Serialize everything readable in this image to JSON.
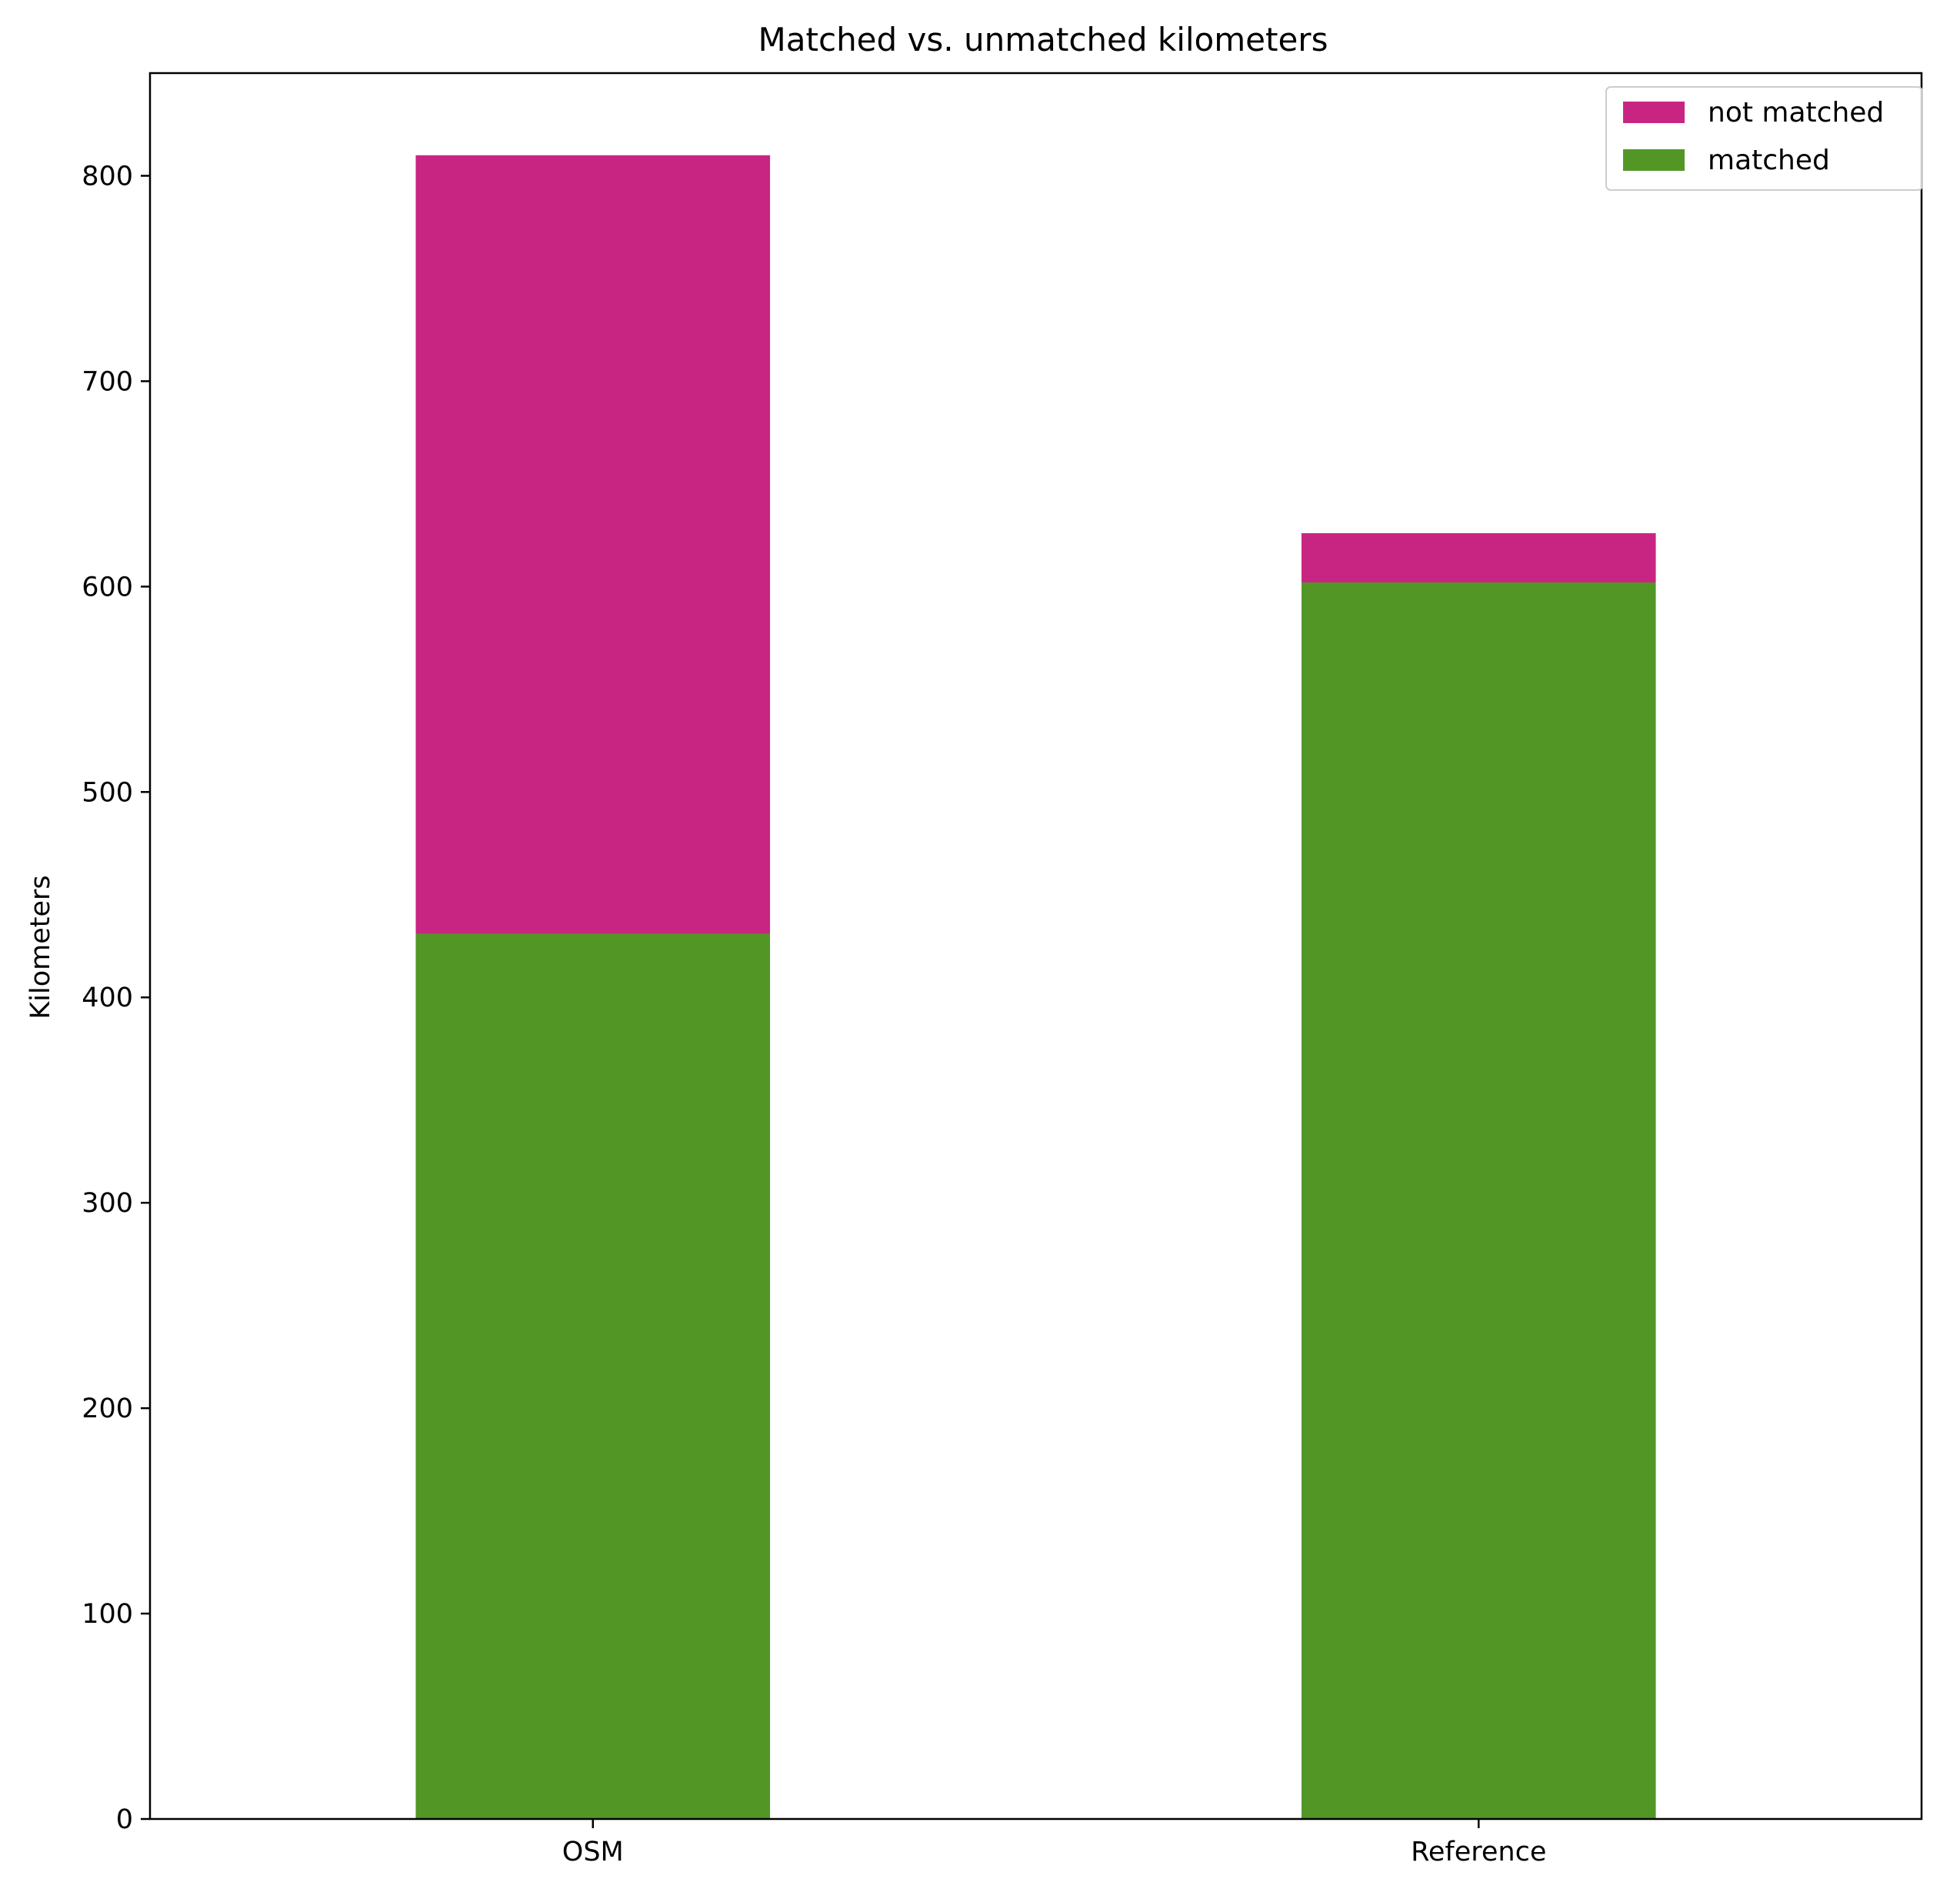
{
  "chart_data": {
    "type": "bar",
    "stacked": true,
    "title": "Matched vs. unmatched kilometers",
    "xlabel": "",
    "ylabel": "Kilometers",
    "categories": [
      "OSM",
      "Reference"
    ],
    "series": [
      {
        "name": "matched",
        "values": [
          431,
          602
        ],
        "color": "#529726"
      },
      {
        "name": "not matched",
        "values": [
          379,
          24
        ],
        "color": "#c82582"
      }
    ],
    "ylim": [
      0,
      850
    ],
    "yticks": [
      0,
      100,
      200,
      300,
      400,
      500,
      600,
      700,
      800
    ],
    "grid": false,
    "legend": {
      "placement": "top-right",
      "entries": [
        "not matched",
        "matched"
      ]
    }
  }
}
